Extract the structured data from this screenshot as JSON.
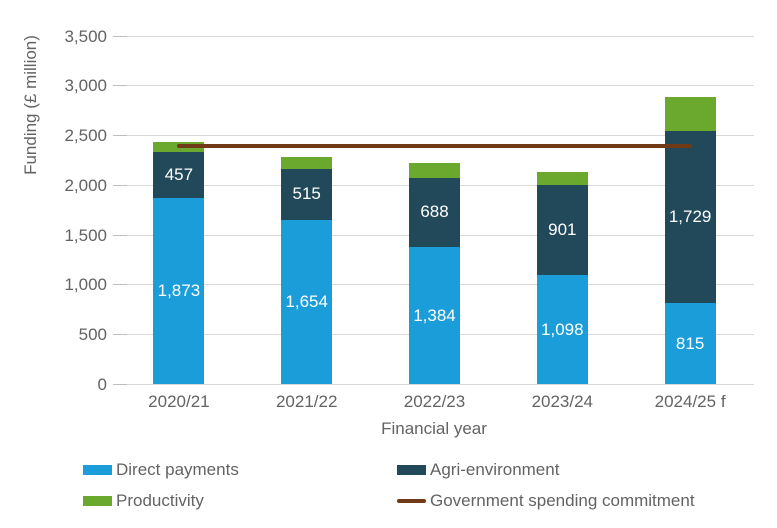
{
  "chart_data": {
    "type": "bar",
    "stacked": true,
    "title": "",
    "xlabel": "Financial year",
    "ylabel": "Funding (£ million)",
    "ylim": [
      0,
      3500
    ],
    "ytick_step": 500,
    "ytick_labels": [
      "0",
      "500",
      "1,000",
      "1,500",
      "2,000",
      "2,500",
      "3,000",
      "3,500"
    ],
    "grid": "horizontal",
    "categories": [
      "2020/21",
      "2021/22",
      "2022/23",
      "2023/24",
      "2024/25 f"
    ],
    "series": [
      {
        "name": "Direct payments",
        "color": "#1b9dd9",
        "values": [
          1873,
          1654,
          1384,
          1098,
          815
        ],
        "labels": [
          "1,873",
          "1,654",
          "1,384",
          "1,098",
          "815"
        ],
        "show_labels": true
      },
      {
        "name": "Agri-environment",
        "color": "#21495a",
        "values": [
          457,
          515,
          688,
          901,
          1729
        ],
        "labels": [
          "457",
          "515",
          "688",
          "901",
          "1,729"
        ],
        "show_labels": true
      },
      {
        "name": "Productivity",
        "color": "#6aa92e",
        "values": [
          110,
          120,
          155,
          140,
          340
        ],
        "labels": [],
        "show_labels": false
      }
    ],
    "line_series": {
      "name": "Government spending commitment",
      "color": "#6f3a15",
      "value": 2400
    },
    "legend": {
      "position": "bottom",
      "items": [
        {
          "label": "Direct payments",
          "swatch": "box",
          "color": "#1b9dd9",
          "col": 0,
          "row": 0
        },
        {
          "label": "Agri-environment",
          "swatch": "box",
          "color": "#21495a",
          "col": 1,
          "row": 0
        },
        {
          "label": "Productivity",
          "swatch": "box",
          "color": "#6aa92e",
          "col": 0,
          "row": 1
        },
        {
          "label": "Government spending commitment",
          "swatch": "line",
          "color": "#6f3a15",
          "col": 1,
          "row": 1
        }
      ]
    },
    "colors": {
      "gridline": "#d9d9d9",
      "tick": "#bfbfbf",
      "text": "#636363",
      "bar_label": "#ffffff"
    }
  }
}
